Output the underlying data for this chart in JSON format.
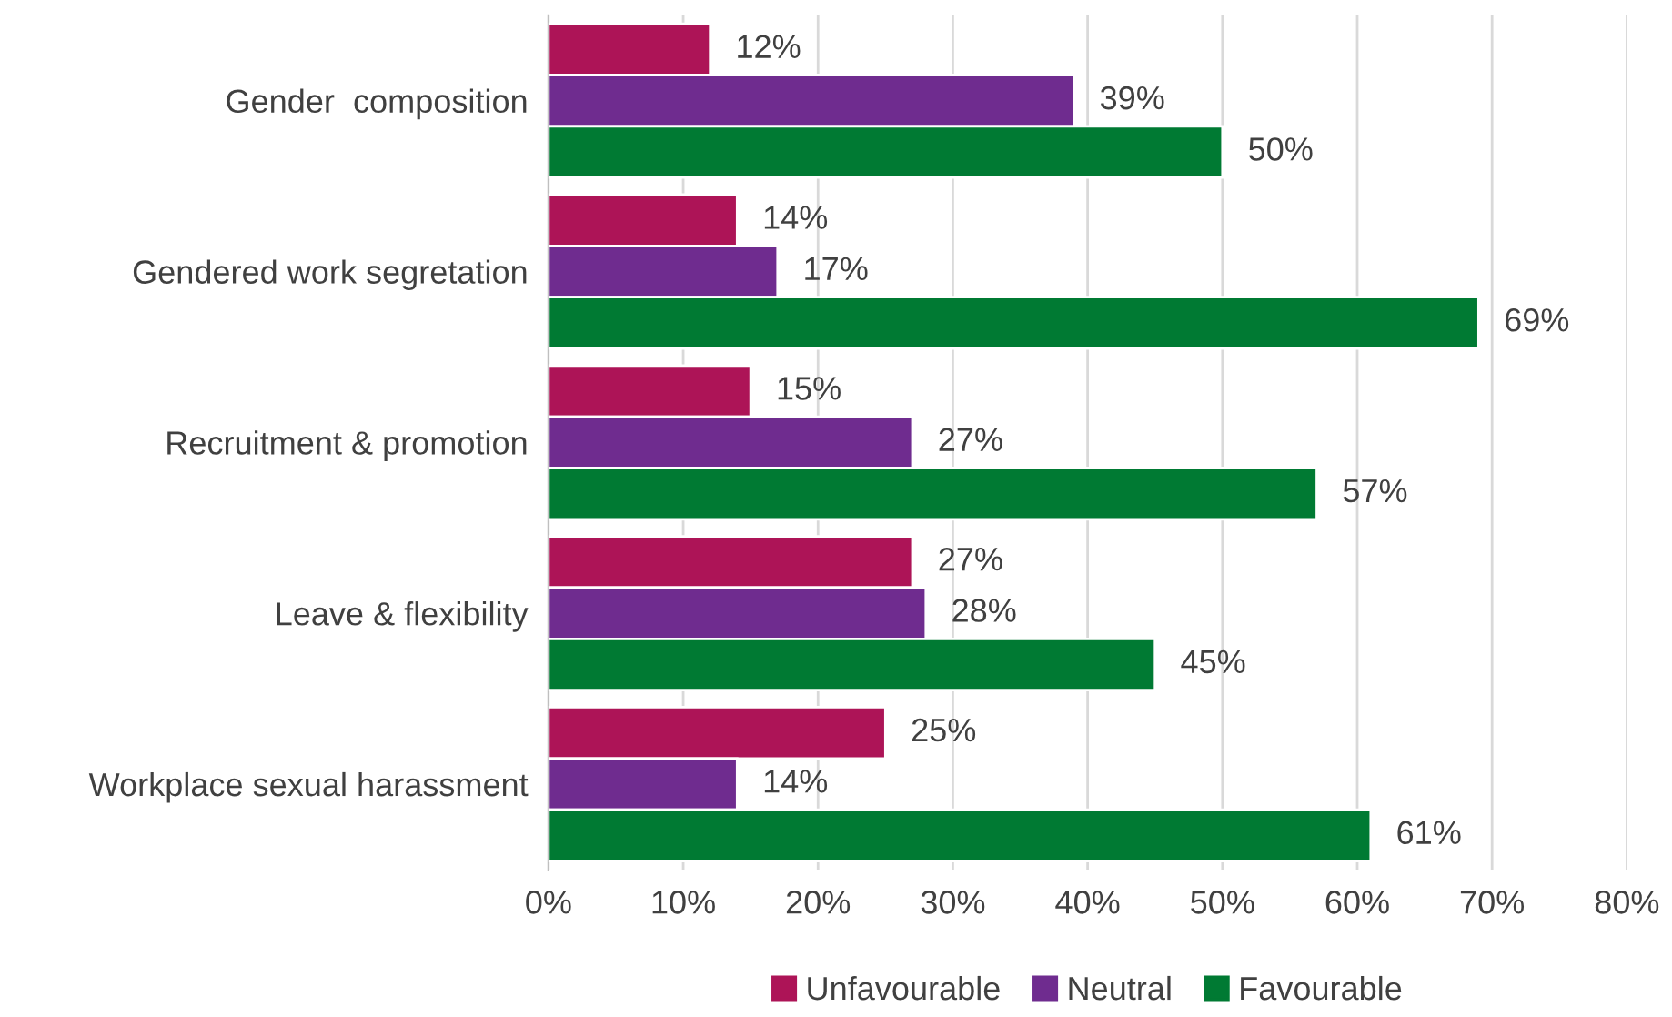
{
  "chart_data": {
    "type": "bar",
    "orientation": "horizontal",
    "categories": [
      "Gender  composition",
      "Gendered work segretation",
      "Recruitment & promotion",
      "Leave & flexibility",
      "Workplace sexual harassment"
    ],
    "series": [
      {
        "name": "Unfavourable",
        "color": "#ad1457",
        "values": [
          12,
          14,
          15,
          27,
          25
        ],
        "value_labels": [
          "12%",
          "14%",
          "15%",
          "27%",
          "25%"
        ]
      },
      {
        "name": "Neutral",
        "color": "#6f2c8f",
        "values": [
          39,
          17,
          27,
          28,
          14
        ],
        "value_labels": [
          "39%",
          "17%",
          "27%",
          "28%",
          "14%"
        ]
      },
      {
        "name": "Favourable",
        "color": "#007a33",
        "values": [
          50,
          69,
          57,
          45,
          61
        ],
        "value_labels": [
          "50%",
          "69%",
          "57%",
          "45%",
          "61%"
        ]
      }
    ],
    "xlim": [
      0,
      80
    ],
    "xticks": [
      {
        "value": 0,
        "label": "0%"
      },
      {
        "value": 10,
        "label": "10%"
      },
      {
        "value": 20,
        "label": "20%"
      },
      {
        "value": 30,
        "label": "30%"
      },
      {
        "value": 40,
        "label": "40%"
      },
      {
        "value": 50,
        "label": "50%"
      },
      {
        "value": 60,
        "label": "60%"
      },
      {
        "value": 70,
        "label": "70%"
      },
      {
        "value": 80,
        "label": "80%"
      }
    ],
    "grid": "x",
    "legend": "bottom"
  }
}
